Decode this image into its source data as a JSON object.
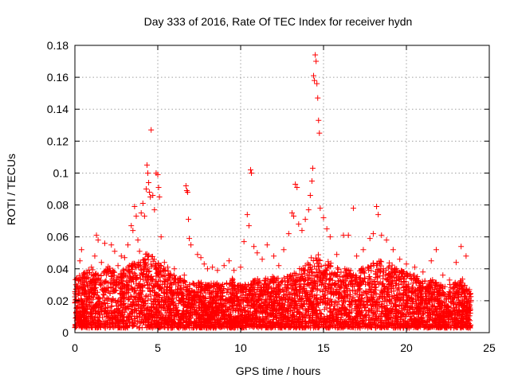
{
  "chart_data": {
    "type": "scatter",
    "title": "Day 333 of 2016, Rate Of TEC Index for receiver hydn",
    "xlabel": "GPS time / hours",
    "ylabel": "ROTI / TECUs",
    "xlim": [
      0,
      25
    ],
    "ylim": [
      0,
      0.18
    ],
    "xticks": [
      "0",
      "5",
      "10",
      "15",
      "20",
      "25"
    ],
    "yticks": [
      "0",
      "0.02",
      "0.04",
      "0.06",
      "0.08",
      "0.1",
      "0.12",
      "0.14",
      "0.16",
      "0.18"
    ],
    "grid": true,
    "marker": "plus",
    "color": "#ff0000",
    "series": [
      {
        "points": [
          [
            0.1,
            0.012
          ],
          [
            0.2,
            0.028
          ],
          [
            0.3,
            0.045
          ],
          [
            0.4,
            0.052
          ],
          [
            0.6,
            0.035
          ],
          [
            0.8,
            0.022
          ],
          [
            1.0,
            0.041
          ],
          [
            1.2,
            0.048
          ],
          [
            1.3,
            0.061
          ],
          [
            1.4,
            0.058
          ],
          [
            1.6,
            0.044
          ],
          [
            1.8,
            0.056
          ],
          [
            2.0,
            0.038
          ],
          [
            2.2,
            0.055
          ],
          [
            2.4,
            0.051
          ],
          [
            2.6,
            0.042
          ],
          [
            2.8,
            0.048
          ],
          [
            3.0,
            0.047
          ],
          [
            3.2,
            0.055
          ],
          [
            3.4,
            0.067
          ],
          [
            3.5,
            0.064
          ],
          [
            3.6,
            0.079
          ],
          [
            3.7,
            0.073
          ],
          [
            3.8,
            0.058
          ],
          [
            3.9,
            0.051
          ],
          [
            4.0,
            0.075
          ],
          [
            4.1,
            0.081
          ],
          [
            4.2,
            0.073
          ],
          [
            4.3,
            0.09
          ],
          [
            4.35,
            0.105
          ],
          [
            4.4,
            0.1
          ],
          [
            4.45,
            0.094
          ],
          [
            4.5,
            0.088
          ],
          [
            4.55,
            0.085
          ],
          [
            4.6,
            0.127
          ],
          [
            4.7,
            0.086
          ],
          [
            4.8,
            0.077
          ],
          [
            4.9,
            0.1
          ],
          [
            5.0,
            0.099
          ],
          [
            5.05,
            0.091
          ],
          [
            5.1,
            0.085
          ],
          [
            5.2,
            0.06
          ],
          [
            5.4,
            0.044
          ],
          [
            5.6,
            0.041
          ],
          [
            5.8,
            0.036
          ],
          [
            6.0,
            0.04
          ],
          [
            6.2,
            0.033
          ],
          [
            6.4,
            0.032
          ],
          [
            6.6,
            0.036
          ],
          [
            6.7,
            0.092
          ],
          [
            6.75,
            0.089
          ],
          [
            6.8,
            0.088
          ],
          [
            6.85,
            0.071
          ],
          [
            6.9,
            0.059
          ],
          [
            7.0,
            0.055
          ],
          [
            7.2,
            0.03
          ],
          [
            7.4,
            0.049
          ],
          [
            7.6,
            0.047
          ],
          [
            7.8,
            0.043
          ],
          [
            8.0,
            0.04
          ],
          [
            8.3,
            0.041
          ],
          [
            8.6,
            0.039
          ],
          [
            9.0,
            0.042
          ],
          [
            9.3,
            0.045
          ],
          [
            9.6,
            0.039
          ],
          [
            10.0,
            0.041
          ],
          [
            10.2,
            0.057
          ],
          [
            10.4,
            0.074
          ],
          [
            10.5,
            0.067
          ],
          [
            10.6,
            0.102
          ],
          [
            10.65,
            0.1
          ],
          [
            10.8,
            0.054
          ],
          [
            11.0,
            0.05
          ],
          [
            11.3,
            0.046
          ],
          [
            11.6,
            0.055
          ],
          [
            12.0,
            0.048
          ],
          [
            12.3,
            0.042
          ],
          [
            12.6,
            0.052
          ],
          [
            12.9,
            0.062
          ],
          [
            13.1,
            0.075
          ],
          [
            13.2,
            0.073
          ],
          [
            13.3,
            0.093
          ],
          [
            13.4,
            0.091
          ],
          [
            13.5,
            0.068
          ],
          [
            13.7,
            0.064
          ],
          [
            13.9,
            0.071
          ],
          [
            14.1,
            0.077
          ],
          [
            14.2,
            0.086
          ],
          [
            14.3,
            0.095
          ],
          [
            14.35,
            0.103
          ],
          [
            14.4,
            0.161
          ],
          [
            14.45,
            0.158
          ],
          [
            14.5,
            0.174
          ],
          [
            14.55,
            0.17
          ],
          [
            14.6,
            0.156
          ],
          [
            14.65,
            0.147
          ],
          [
            14.7,
            0.133
          ],
          [
            14.75,
            0.125
          ],
          [
            14.8,
            0.078
          ],
          [
            15.0,
            0.072
          ],
          [
            15.2,
            0.065
          ],
          [
            15.4,
            0.06
          ],
          [
            15.8,
            0.049
          ],
          [
            16.2,
            0.061
          ],
          [
            16.5,
            0.061
          ],
          [
            16.8,
            0.078
          ],
          [
            17.0,
            0.048
          ],
          [
            17.4,
            0.052
          ],
          [
            17.8,
            0.059
          ],
          [
            18.0,
            0.062
          ],
          [
            18.2,
            0.079
          ],
          [
            18.3,
            0.074
          ],
          [
            18.5,
            0.061
          ],
          [
            18.8,
            0.058
          ],
          [
            19.2,
            0.052
          ],
          [
            19.6,
            0.046
          ],
          [
            20.0,
            0.043
          ],
          [
            20.5,
            0.041
          ],
          [
            21.0,
            0.038
          ],
          [
            21.5,
            0.045
          ],
          [
            21.8,
            0.052
          ],
          [
            22.2,
            0.036
          ],
          [
            22.6,
            0.033
          ],
          [
            23.0,
            0.044
          ],
          [
            23.3,
            0.054
          ],
          [
            23.6,
            0.048
          ],
          [
            23.8,
            0.027
          ]
        ],
        "band": [
          [
            0,
            0.034
          ],
          [
            0.5,
            0.038
          ],
          [
            1,
            0.04
          ],
          [
            1.5,
            0.036
          ],
          [
            2,
            0.042
          ],
          [
            2.5,
            0.038
          ],
          [
            3,
            0.04
          ],
          [
            3.5,
            0.044
          ],
          [
            4,
            0.046
          ],
          [
            4.5,
            0.052
          ],
          [
            5,
            0.044
          ],
          [
            5.5,
            0.04
          ],
          [
            6,
            0.036
          ],
          [
            6.5,
            0.034
          ],
          [
            7,
            0.03
          ],
          [
            7.5,
            0.034
          ],
          [
            8,
            0.03
          ],
          [
            8.5,
            0.032
          ],
          [
            9,
            0.03
          ],
          [
            9.5,
            0.034
          ],
          [
            10,
            0.03
          ],
          [
            10.5,
            0.032
          ],
          [
            11,
            0.034
          ],
          [
            11.5,
            0.034
          ],
          [
            12,
            0.036
          ],
          [
            12.5,
            0.034
          ],
          [
            13,
            0.036
          ],
          [
            13.5,
            0.04
          ],
          [
            14,
            0.044
          ],
          [
            14.5,
            0.05
          ],
          [
            15,
            0.048
          ],
          [
            15.5,
            0.044
          ],
          [
            16,
            0.04
          ],
          [
            16.5,
            0.04
          ],
          [
            17,
            0.038
          ],
          [
            17.5,
            0.042
          ],
          [
            18,
            0.044
          ],
          [
            18.5,
            0.046
          ],
          [
            19,
            0.044
          ],
          [
            19.5,
            0.04
          ],
          [
            20,
            0.038
          ],
          [
            20.5,
            0.036
          ],
          [
            21,
            0.034
          ],
          [
            21.5,
            0.034
          ],
          [
            22,
            0.03
          ],
          [
            22.5,
            0.03
          ],
          [
            23,
            0.032
          ],
          [
            23.5,
            0.034
          ],
          [
            23.9,
            0.024
          ]
        ]
      }
    ]
  }
}
